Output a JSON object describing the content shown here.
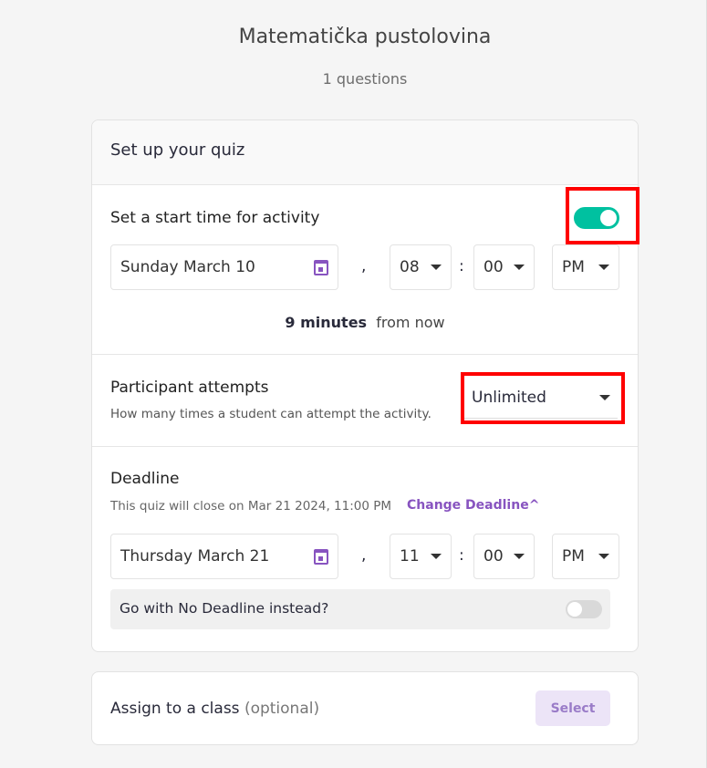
{
  "quiz": {
    "title": "Matematička pustolovina",
    "questions": "1 questions"
  },
  "setup": {
    "heading": "Set up your quiz",
    "start": {
      "label": "Set a start time for activity",
      "enabled": true,
      "date": "Sunday March 10",
      "comma": ",",
      "hour": "08",
      "colon": ":",
      "minute": "00",
      "ampm": "PM",
      "relative_bold": "9 minutes",
      "relative_rest": "from now"
    },
    "attempts": {
      "label": "Participant attempts",
      "help": "How many times a student can attempt the activity.",
      "value": "Unlimited"
    },
    "deadline": {
      "label": "Deadline",
      "info": "This quiz will close on Mar 21 2024, 11:00 PM",
      "change": "Change Deadline",
      "date": "Thursday March 21",
      "comma": ",",
      "hour": "11",
      "colon": ":",
      "minute": "00",
      "ampm": "PM",
      "no_deadline": "Go with No Deadline instead?",
      "no_deadline_enabled": false
    }
  },
  "assign": {
    "label": "Assign to a class",
    "optional": "(optional)",
    "button": "Select"
  },
  "colors": {
    "accent": "#8854c0",
    "toggle_on": "#00c1a0",
    "highlight": "#ff0000"
  }
}
